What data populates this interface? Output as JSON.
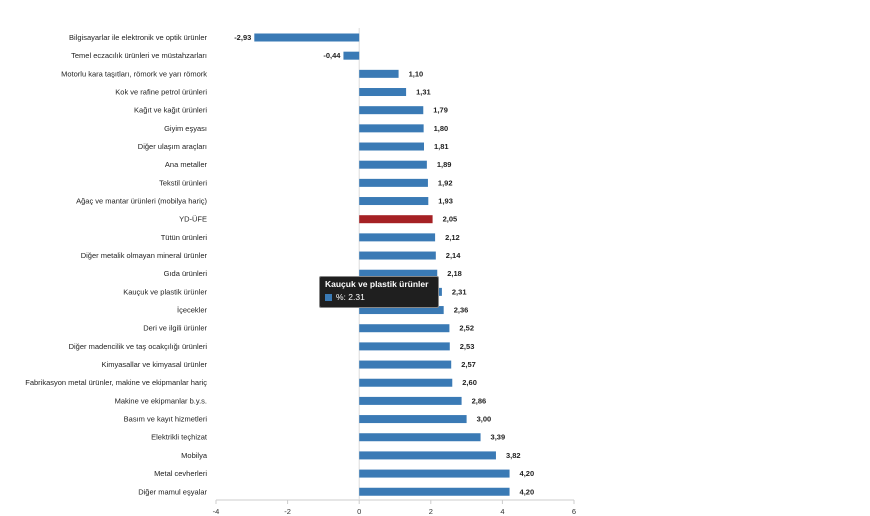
{
  "chart_data": {
    "type": "bar",
    "orientation": "horizontal",
    "title": "",
    "xlabel": "",
    "ylabel": "",
    "xlim": [
      -4,
      6
    ],
    "ticks": [
      -4,
      -2,
      0,
      2,
      4,
      6
    ],
    "categories": [
      "Bilgisayarlar ile elektronik ve optik ürünler",
      "Temel eczacılık ürünleri ve müstahzarları",
      "Motorlu kara taşıtları, römork ve yarı römork",
      "Kok ve rafine petrol ürünleri",
      "Kağıt ve kağıt ürünleri",
      "Giyim eşyası",
      "Diğer ulaşım araçları",
      "Ana metaller",
      "Tekstil ürünleri",
      "Ağaç ve mantar ürünleri (mobilya hariç)",
      "YD-ÜFE",
      "Tütün ürünleri",
      "Diğer metalik olmayan mineral ürünler",
      "Gıda ürünleri",
      "Kauçuk ve plastik ürünler",
      "İçecekler",
      "Deri ve ilgili ürünler",
      "Diğer madencilik ve taş ocakçılığı ürünleri",
      "Kimyasallar ve kimyasal ürünler",
      "Fabrikasyon metal ürünler, makine ve ekipmanlar hariç",
      "Makine ve ekipmanlar b.y.s.",
      "Basım ve kayıt hizmetleri",
      "Elektrikli teçhizat",
      "Mobilya",
      "Metal cevherleri",
      "Diğer mamul eşyalar"
    ],
    "values": [
      -2.93,
      -0.44,
      1.1,
      1.31,
      1.79,
      1.8,
      1.81,
      1.89,
      1.92,
      1.93,
      2.05,
      2.12,
      2.14,
      2.18,
      2.31,
      2.36,
      2.52,
      2.53,
      2.57,
      2.6,
      2.86,
      3.0,
      3.39,
      3.82,
      4.2,
      4.2
    ],
    "value_labels": [
      "-2,93",
      "-0,44",
      "1,10",
      "1,31",
      "1,79",
      "1,80",
      "1,81",
      "1,89",
      "1,92",
      "1,93",
      "2,05",
      "2,12",
      "2,14",
      "2,18",
      "2,31",
      "2,36",
      "2,52",
      "2,53",
      "2,57",
      "2,60",
      "2,86",
      "3,00",
      "3,39",
      "3,82",
      "4,20",
      "4,20"
    ],
    "highlight_index": 10,
    "bar_color": "#3a7ab5",
    "highlight_color": "#a52124",
    "grid": false,
    "legend": "none"
  },
  "tooltip": {
    "title": "Kauçuk ve plastik ürünler",
    "value_text": "%: 2.31"
  }
}
